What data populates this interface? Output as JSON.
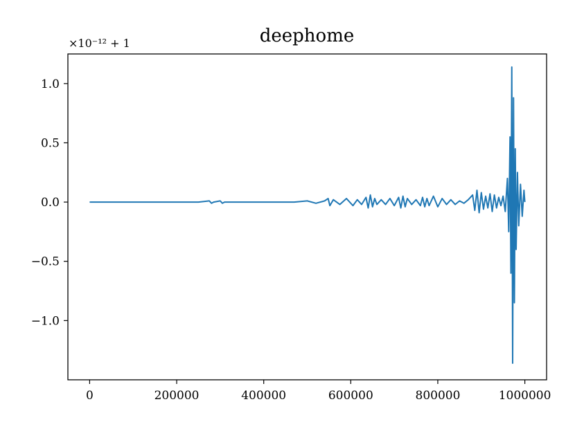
{
  "chart_data": {
    "type": "line",
    "title": "deephome",
    "xlabel": "",
    "ylabel": "",
    "y_offset_label": "×10⁻¹² + 1",
    "xlim": [
      -50000,
      1050000
    ],
    "ylim": [
      -1.5,
      1.25
    ],
    "x_ticks": [
      0,
      200000,
      400000,
      600000,
      800000,
      1000000
    ],
    "x_tick_labels": [
      "0",
      "200000",
      "400000",
      "600000",
      "800000",
      "1000000"
    ],
    "y_ticks": [
      1.0,
      0.5,
      0.0,
      -0.5,
      -1.0
    ],
    "y_tick_labels": [
      "1.0",
      "0.5",
      "0.0",
      "−0.5",
      "−1.0"
    ],
    "grid": false,
    "line_color": "#1f77b4",
    "series": [
      {
        "x": [
          0,
          20000,
          60000,
          100000,
          150000,
          200000,
          250000,
          275000,
          280000,
          285000,
          300000,
          305000,
          310000,
          330000,
          360000,
          400000,
          430000,
          470000,
          500000,
          520000,
          540000,
          548000,
          552000,
          560000,
          575000,
          590000,
          605000,
          615000,
          625000,
          635000,
          640000,
          645000,
          650000,
          655000,
          660000,
          670000,
          680000,
          690000,
          700000,
          710000,
          715000,
          720000,
          725000,
          730000,
          740000,
          750000,
          760000,
          765000,
          770000,
          775000,
          780000,
          790000,
          800000,
          810000,
          820000,
          830000,
          840000,
          850000,
          860000,
          870000,
          880000,
          885000,
          890000,
          895000,
          900000,
          905000,
          910000,
          915000,
          920000,
          925000,
          930000,
          935000,
          940000,
          945000,
          950000,
          955000,
          960000,
          963000,
          966000,
          968000,
          970000,
          972000,
          974000,
          976000,
          978000,
          980000,
          983000,
          986000,
          990000,
          994000,
          998000,
          1000000
        ],
        "y": [
          0.0,
          0.0,
          0.0,
          0.0,
          0.0,
          0.0,
          0.0,
          0.01,
          -0.01,
          0.0,
          0.01,
          -0.01,
          0.0,
          0.0,
          0.0,
          0.0,
          0.0,
          0.0,
          0.01,
          -0.01,
          0.01,
          0.03,
          -0.03,
          0.02,
          -0.02,
          0.03,
          -0.03,
          0.02,
          -0.02,
          0.04,
          -0.05,
          0.06,
          -0.04,
          0.03,
          -0.02,
          0.02,
          -0.02,
          0.03,
          -0.03,
          0.04,
          -0.05,
          0.05,
          -0.04,
          0.03,
          -0.02,
          0.02,
          -0.03,
          0.04,
          -0.04,
          0.03,
          -0.03,
          0.05,
          -0.04,
          0.03,
          -0.02,
          0.02,
          -0.02,
          0.01,
          -0.01,
          0.02,
          0.06,
          -0.07,
          0.1,
          -0.09,
          0.08,
          -0.06,
          0.05,
          -0.05,
          0.07,
          -0.08,
          0.06,
          -0.05,
          0.04,
          -0.03,
          0.05,
          -0.08,
          0.2,
          -0.25,
          0.55,
          -0.6,
          1.14,
          -1.36,
          0.88,
          -0.85,
          0.45,
          -0.4,
          0.25,
          -0.2,
          0.15,
          -0.12,
          0.1,
          0.0
        ]
      }
    ]
  }
}
